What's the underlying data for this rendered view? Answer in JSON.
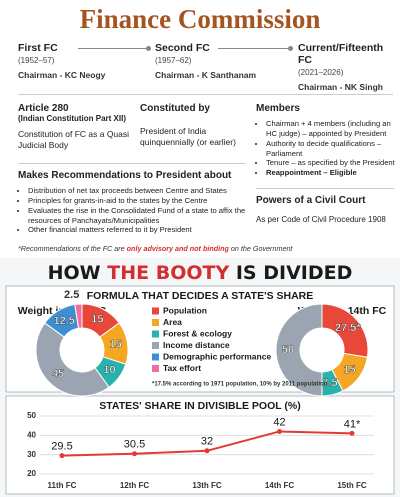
{
  "header": {
    "title": "Finance Commission"
  },
  "timeline": [
    {
      "name": "First FC",
      "years": "(1952–57)",
      "chairman": "Chairman - KC Neogy"
    },
    {
      "name": "Second FC",
      "years": "(1957–62)",
      "chairman": "Chairman - K Santhanam"
    },
    {
      "name": "Current/Fifteenth FC",
      "years": "(2021–2026)",
      "chairman": "Chairman - NK Singh"
    }
  ],
  "article": {
    "title": "Article 280",
    "subtitle": "(Indian Constitution Part XII)",
    "text": "Constitution of FC as a Quasi Judicial Body"
  },
  "constituted": {
    "title": "Constituted by",
    "text": "President of India quinquennially (or earlier)"
  },
  "members": {
    "title": "Members",
    "items": [
      "Chairman + 4 members (including an HC judge) – appointed by President",
      "Authority to decide qualifications – Parliament",
      "Tenure – as specified by the President",
      "Reappointment – Eligible"
    ]
  },
  "recommendations": {
    "title": "Makes Recommendations to President about",
    "items": [
      "Distribution of net tax proceeds between Centre and States",
      "Principles for grants-in-aid to the states by the Centre",
      "Evaluates the rise in the Consolidated Fund of a state to affix the resources of Panchayats/Municipalities",
      "Other financial matters referred to it by President"
    ]
  },
  "powers": {
    "title": "Powers of a Civil Court",
    "text": "As per Code of Civil Procedure 1908"
  },
  "footnote": [
    "*Recommendations of the FC are ",
    "only advisory and not binding",
    " on the Government"
  ],
  "section": {
    "title": [
      "HOW",
      "THE BOOTY",
      "IS DIVIDED"
    ],
    "subtitle": "FORMULA THAT DECIDES A STATE'S SHARE"
  },
  "chart_data": [
    {
      "type": "pie",
      "title": "Weight in 15th FC",
      "categories": [
        "Population",
        "Area",
        "Forest & ecology",
        "Income distance",
        "Demographic performance",
        "Tax effort"
      ],
      "values": [
        15,
        15,
        10,
        45,
        12.5,
        2.5
      ],
      "colors": [
        "#e8473a",
        "#f5a623",
        "#26b3ad",
        "#9aa5b1",
        "#3d8fd4",
        "#f06fa0"
      ]
    },
    {
      "type": "pie",
      "title": "Weight in 14th FC",
      "values": [
        27.5,
        15,
        7.5,
        50
      ],
      "value_labels": [
        "27.5*",
        "15",
        "7.5",
        "50"
      ],
      "colors": [
        "#e8473a",
        "#f5a623",
        "#26b3ad",
        "#9aa5b1"
      ],
      "note": "*17.5% according to 1971 population, 10% by 2011 population"
    },
    {
      "type": "line",
      "title": "STATES' SHARE IN DIVISIBLE POOL (%)",
      "categories": [
        "11th FC",
        "12th FC",
        "13th FC",
        "14th FC",
        "15th FC"
      ],
      "values": [
        29.5,
        30.5,
        32,
        42,
        41
      ],
      "value_labels": [
        "29.5",
        "30.5",
        "32",
        "42",
        "41*"
      ],
      "color": "#e53935",
      "ylim": [
        20,
        50
      ],
      "yticks": [
        20,
        30,
        40,
        50
      ],
      "grid": true
    }
  ]
}
